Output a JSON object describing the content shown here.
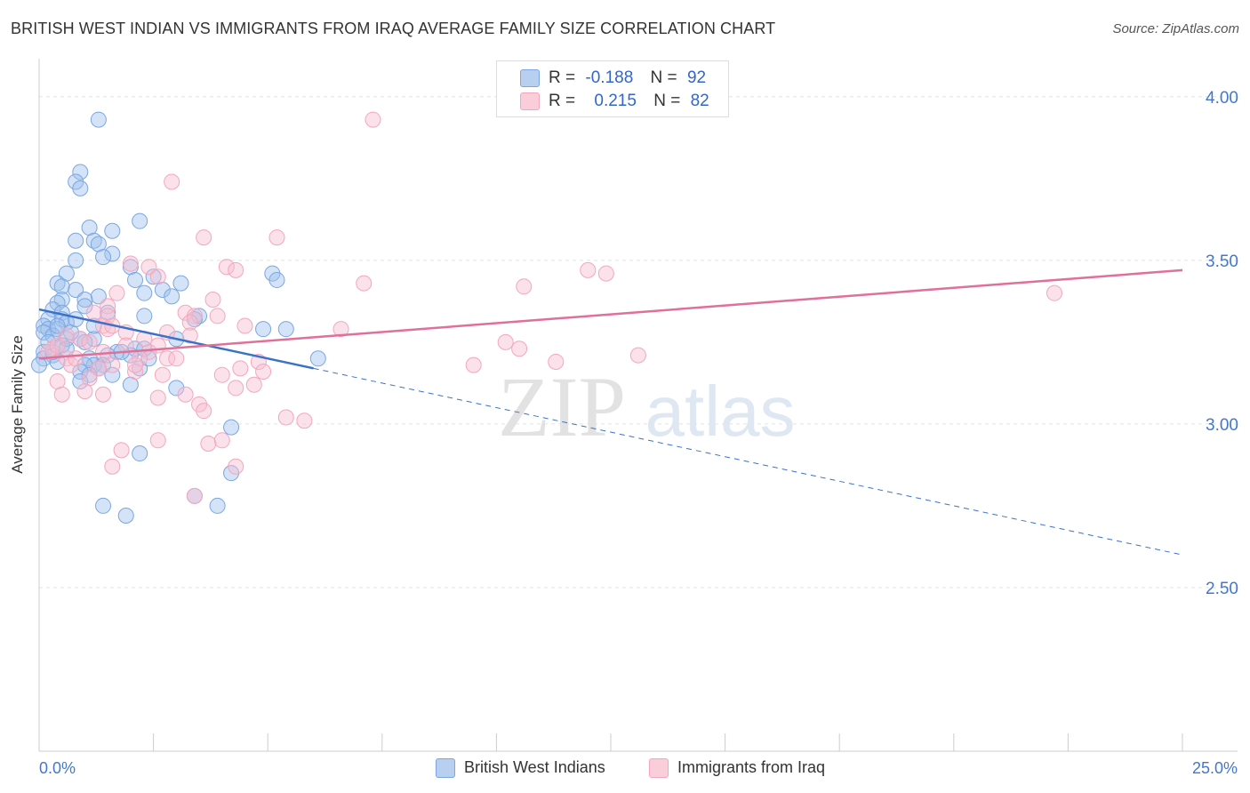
{
  "title": "BRITISH WEST INDIAN VS IMMIGRANTS FROM IRAQ AVERAGE FAMILY SIZE CORRELATION CHART",
  "source": "Source: ZipAtlas.com",
  "watermark": {
    "zip": "ZIP",
    "atlas": "atlas"
  },
  "legend_top": {
    "rows": [
      {
        "r_label": "R =",
        "r_value": "-0.188",
        "n_label": "N =",
        "n_value": "92"
      },
      {
        "r_label": "R =",
        "r_value": "0.215",
        "n_label": "N =",
        "n_value": "82"
      }
    ]
  },
  "chart_data": {
    "type": "scatter",
    "title": "BRITISH WEST INDIAN VS IMMIGRANTS FROM IRAQ AVERAGE FAMILY SIZE CORRELATION CHART",
    "xlabel": "",
    "ylabel": "Average Family Size",
    "xlim": [
      0,
      25
    ],
    "ylim": [
      2.0,
      4.1
    ],
    "x_tick_labels": [
      "0.0%",
      "25.0%"
    ],
    "y_ticks": [
      2.5,
      3.0,
      3.5,
      4.0
    ],
    "y_tick_labels": [
      "2.50",
      "3.00",
      "3.50",
      "4.00"
    ],
    "grid": true,
    "legend_position": "bottom",
    "series": [
      {
        "name": "British West Indians",
        "color": "#7ba7e0",
        "line_color": "#3a72c8",
        "r": -0.188,
        "n": 92,
        "trend": {
          "x0": 0.0,
          "y0": 3.35,
          "x1": 6.0,
          "y1": 3.17,
          "dash_to_x": 25.0,
          "dash_to_y": 2.6
        },
        "points": [
          [
            1.3,
            3.93
          ],
          [
            0.9,
            3.77
          ],
          [
            0.8,
            3.74
          ],
          [
            0.9,
            3.72
          ],
          [
            2.2,
            3.62
          ],
          [
            1.1,
            3.6
          ],
          [
            1.6,
            3.59
          ],
          [
            0.8,
            3.56
          ],
          [
            1.2,
            3.56
          ],
          [
            1.3,
            3.55
          ],
          [
            1.6,
            3.52
          ],
          [
            1.4,
            3.51
          ],
          [
            0.8,
            3.5
          ],
          [
            2.0,
            3.48
          ],
          [
            0.6,
            3.46
          ],
          [
            5.1,
            3.46
          ],
          [
            2.5,
            3.45
          ],
          [
            2.1,
            3.44
          ],
          [
            5.2,
            3.44
          ],
          [
            0.4,
            3.43
          ],
          [
            3.1,
            3.43
          ],
          [
            0.5,
            3.42
          ],
          [
            2.7,
            3.41
          ],
          [
            0.8,
            3.41
          ],
          [
            2.3,
            3.4
          ],
          [
            1.3,
            3.39
          ],
          [
            2.9,
            3.39
          ],
          [
            0.5,
            3.38
          ],
          [
            1.0,
            3.38
          ],
          [
            0.4,
            3.37
          ],
          [
            1.0,
            3.36
          ],
          [
            0.3,
            3.35
          ],
          [
            0.5,
            3.34
          ],
          [
            1.5,
            3.34
          ],
          [
            2.3,
            3.33
          ],
          [
            3.5,
            3.33
          ],
          [
            0.2,
            3.32
          ],
          [
            0.5,
            3.32
          ],
          [
            3.4,
            3.32
          ],
          [
            0.6,
            3.31
          ],
          [
            0.1,
            3.3
          ],
          [
            0.2,
            3.29
          ],
          [
            0.4,
            3.29
          ],
          [
            4.9,
            3.29
          ],
          [
            5.4,
            3.29
          ],
          [
            0.1,
            3.28
          ],
          [
            0.3,
            3.27
          ],
          [
            0.6,
            3.26
          ],
          [
            0.9,
            3.26
          ],
          [
            1.2,
            3.26
          ],
          [
            3.0,
            3.26
          ],
          [
            0.5,
            3.24
          ],
          [
            0.1,
            3.22
          ],
          [
            2.1,
            3.23
          ],
          [
            1.7,
            3.22
          ],
          [
            0.3,
            3.21
          ],
          [
            1.5,
            3.21
          ],
          [
            1.1,
            3.2
          ],
          [
            2.0,
            3.21
          ],
          [
            6.1,
            3.2
          ],
          [
            0.1,
            3.2
          ],
          [
            0.4,
            3.19
          ],
          [
            1.2,
            3.18
          ],
          [
            1.0,
            3.18
          ],
          [
            1.4,
            3.18
          ],
          [
            1.3,
            3.17
          ],
          [
            2.2,
            3.17
          ],
          [
            0.0,
            3.18
          ],
          [
            0.9,
            3.16
          ],
          [
            1.1,
            3.15
          ],
          [
            1.6,
            3.15
          ],
          [
            0.9,
            3.13
          ],
          [
            2.0,
            3.12
          ],
          [
            3.0,
            3.11
          ],
          [
            0.3,
            3.22
          ],
          [
            4.2,
            2.99
          ],
          [
            2.2,
            2.91
          ],
          [
            4.2,
            2.85
          ],
          [
            3.4,
            2.78
          ],
          [
            1.4,
            2.75
          ],
          [
            3.9,
            2.75
          ],
          [
            1.9,
            2.72
          ],
          [
            0.7,
            3.28
          ],
          [
            1.8,
            3.22
          ],
          [
            2.3,
            3.23
          ],
          [
            0.2,
            3.25
          ],
          [
            0.6,
            3.23
          ],
          [
            1.2,
            3.3
          ],
          [
            0.8,
            3.32
          ],
          [
            2.4,
            3.2
          ],
          [
            0.4,
            3.3
          ],
          [
            1.0,
            3.25
          ]
        ]
      },
      {
        "name": "Immigrants from Iraq",
        "color": "#f4a6bf",
        "line_color": "#e07098",
        "r": 0.215,
        "n": 82,
        "trend": {
          "x0": 0.0,
          "y0": 3.2,
          "x1": 25.0,
          "y1": 3.47
        },
        "points": [
          [
            7.3,
            3.93
          ],
          [
            2.9,
            3.74
          ],
          [
            3.6,
            3.57
          ],
          [
            5.2,
            3.57
          ],
          [
            2.0,
            3.49
          ],
          [
            2.4,
            3.48
          ],
          [
            4.1,
            3.48
          ],
          [
            4.3,
            3.47
          ],
          [
            12.4,
            3.46
          ],
          [
            12.0,
            3.47
          ],
          [
            2.6,
            3.45
          ],
          [
            7.1,
            3.43
          ],
          [
            10.6,
            3.42
          ],
          [
            22.2,
            3.4
          ],
          [
            1.7,
            3.4
          ],
          [
            3.8,
            3.38
          ],
          [
            1.5,
            3.36
          ],
          [
            3.2,
            3.34
          ],
          [
            1.5,
            3.33
          ],
          [
            3.4,
            3.33
          ],
          [
            3.9,
            3.33
          ],
          [
            3.3,
            3.31
          ],
          [
            1.4,
            3.3
          ],
          [
            4.5,
            3.3
          ],
          [
            6.6,
            3.29
          ],
          [
            1.5,
            3.29
          ],
          [
            1.9,
            3.28
          ],
          [
            2.8,
            3.28
          ],
          [
            3.3,
            3.27
          ],
          [
            0.9,
            3.26
          ],
          [
            1.1,
            3.25
          ],
          [
            10.2,
            3.25
          ],
          [
            2.6,
            3.24
          ],
          [
            1.9,
            3.24
          ],
          [
            10.5,
            3.23
          ],
          [
            0.3,
            3.23
          ],
          [
            2.4,
            3.22
          ],
          [
            1.4,
            3.22
          ],
          [
            13.1,
            3.21
          ],
          [
            0.6,
            3.2
          ],
          [
            2.2,
            3.2
          ],
          [
            2.8,
            3.2
          ],
          [
            11.3,
            3.19
          ],
          [
            4.8,
            3.19
          ],
          [
            1.6,
            3.18
          ],
          [
            9.5,
            3.18
          ],
          [
            0.7,
            3.18
          ],
          [
            4.4,
            3.17
          ],
          [
            1.3,
            3.17
          ],
          [
            4.9,
            3.16
          ],
          [
            2.1,
            3.16
          ],
          [
            4.0,
            3.15
          ],
          [
            2.7,
            3.15
          ],
          [
            1.1,
            3.14
          ],
          [
            0.4,
            3.13
          ],
          [
            4.7,
            3.12
          ],
          [
            4.3,
            3.11
          ],
          [
            1.0,
            3.1
          ],
          [
            1.4,
            3.09
          ],
          [
            3.2,
            3.09
          ],
          [
            0.5,
            3.09
          ],
          [
            2.6,
            3.08
          ],
          [
            3.5,
            3.06
          ],
          [
            3.6,
            3.04
          ],
          [
            5.4,
            3.02
          ],
          [
            5.8,
            3.01
          ],
          [
            2.6,
            2.95
          ],
          [
            3.7,
            2.94
          ],
          [
            4.0,
            2.95
          ],
          [
            1.8,
            2.92
          ],
          [
            1.6,
            2.87
          ],
          [
            4.3,
            2.87
          ],
          [
            3.4,
            2.78
          ],
          [
            0.2,
            3.22
          ],
          [
            0.8,
            3.2
          ],
          [
            1.2,
            3.34
          ],
          [
            2.1,
            3.18
          ],
          [
            3.0,
            3.2
          ],
          [
            0.4,
            3.24
          ],
          [
            2.3,
            3.26
          ],
          [
            1.6,
            3.3
          ],
          [
            0.6,
            3.27
          ]
        ]
      }
    ]
  }
}
